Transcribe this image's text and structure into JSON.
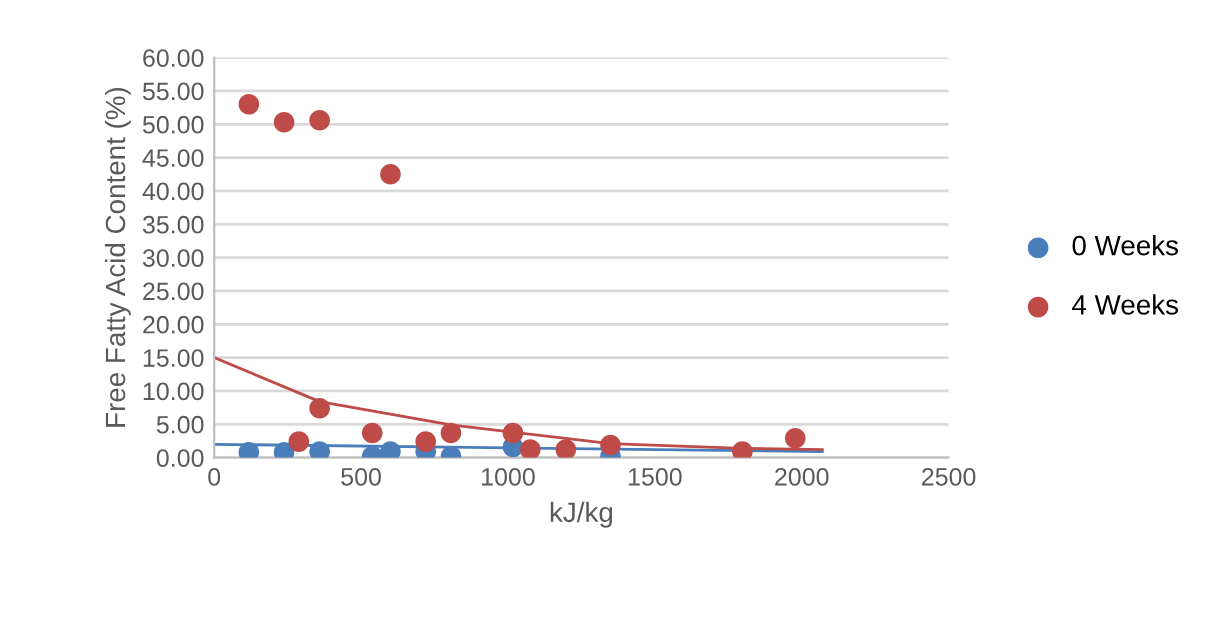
{
  "chart_data": {
    "type": "scatter",
    "xlabel": "kJ/kg",
    "ylabel": "Free Fatty Acid Content (%)",
    "xlim": [
      0,
      2500
    ],
    "xticks": [
      0,
      500,
      1000,
      1500,
      2000,
      2500
    ],
    "ylim": [
      0,
      60
    ],
    "yticks": [
      {
        "value": 0,
        "label": "0.00"
      },
      {
        "value": 5,
        "label": "5.00"
      },
      {
        "value": 10,
        "label": "10.00"
      },
      {
        "value": 15,
        "label": "15.00"
      },
      {
        "value": 20,
        "label": "20.00"
      },
      {
        "value": 25,
        "label": "25.00"
      },
      {
        "value": 30,
        "label": "30.00"
      },
      {
        "value": 35,
        "label": "35.00"
      },
      {
        "value": 40,
        "label": "40.00"
      },
      {
        "value": 45,
        "label": "45.00"
      },
      {
        "value": 50,
        "label": "50.00"
      },
      {
        "value": 55,
        "label": "55.00"
      },
      {
        "value": 60,
        "label": "60.00"
      }
    ],
    "grid": "y",
    "legend": "right",
    "series": [
      {
        "name": "0 Weeks",
        "marker": "circle",
        "color": "#4a7ebb",
        "x": [
          118,
          238,
          359,
          538,
          600,
          720,
          806,
          1017,
          1349
        ],
        "values": [
          0.8,
          0.8,
          0.9,
          0.2,
          0.9,
          0.9,
          0.2,
          1.6,
          0.2
        ]
      },
      {
        "name": "4 Weeks",
        "marker": "circle",
        "color": "#be4b48",
        "x": [
          118,
          238,
          359,
          600,
          359,
          288,
          538,
          720,
          806,
          1017,
          1076,
          1197,
          1349,
          1798,
          1978
        ],
        "values": [
          53,
          50.3,
          50.6,
          42.5,
          7.4,
          2.4,
          3.7,
          2.4,
          3.7,
          3.7,
          1.2,
          1.2,
          1.9,
          0.9,
          2.9
        ]
      },
      {
        "type": "line",
        "color": "#4a7ebb",
        "x": [
          0,
          2070
        ],
        "values": [
          2.0,
          0.9
        ]
      },
      {
        "type": "line",
        "color": "#be4b48",
        "x": [
          0,
          359,
          806,
          1349,
          1798,
          2070
        ],
        "values": [
          15,
          8.4,
          4.9,
          2.1,
          1.4,
          1.2
        ]
      }
    ]
  }
}
